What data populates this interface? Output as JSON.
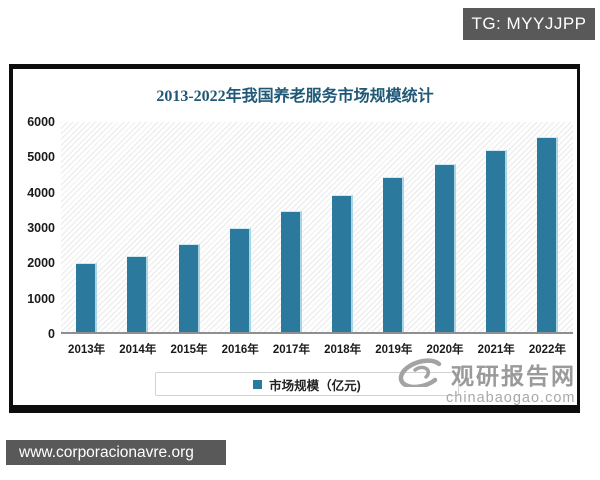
{
  "tg_badge": {
    "label": "TG: MYYJJPP"
  },
  "url_bar": {
    "label": "www.corporacionavre.org"
  },
  "watermark": {
    "icon": "swirl-logo-icon",
    "name": "观研报告网",
    "domain": "chinabaogao.com"
  },
  "chart_data": {
    "type": "bar",
    "title": "2013-2022年我国养老服务市场规模统计",
    "categories": [
      "2013年",
      "2014年",
      "2015年",
      "2016年",
      "2017年",
      "2018年",
      "2019年",
      "2020年",
      "2021年",
      "2022年"
    ],
    "values": [
      1950,
      2150,
      2500,
      2950,
      3430,
      3880,
      4400,
      4750,
      5150,
      5530
    ],
    "legend": "市场规模（亿元)",
    "legend_position": "bottom",
    "xlabel": "",
    "ylabel": "",
    "ylim": [
      0,
      6000
    ],
    "ytick_interval": 1000,
    "grid": false,
    "plot_background": "hatched",
    "colors": {
      "bar": "#2b7a9d",
      "bar_highlight": "#a9d6e5",
      "title": "#1f5876"
    }
  }
}
